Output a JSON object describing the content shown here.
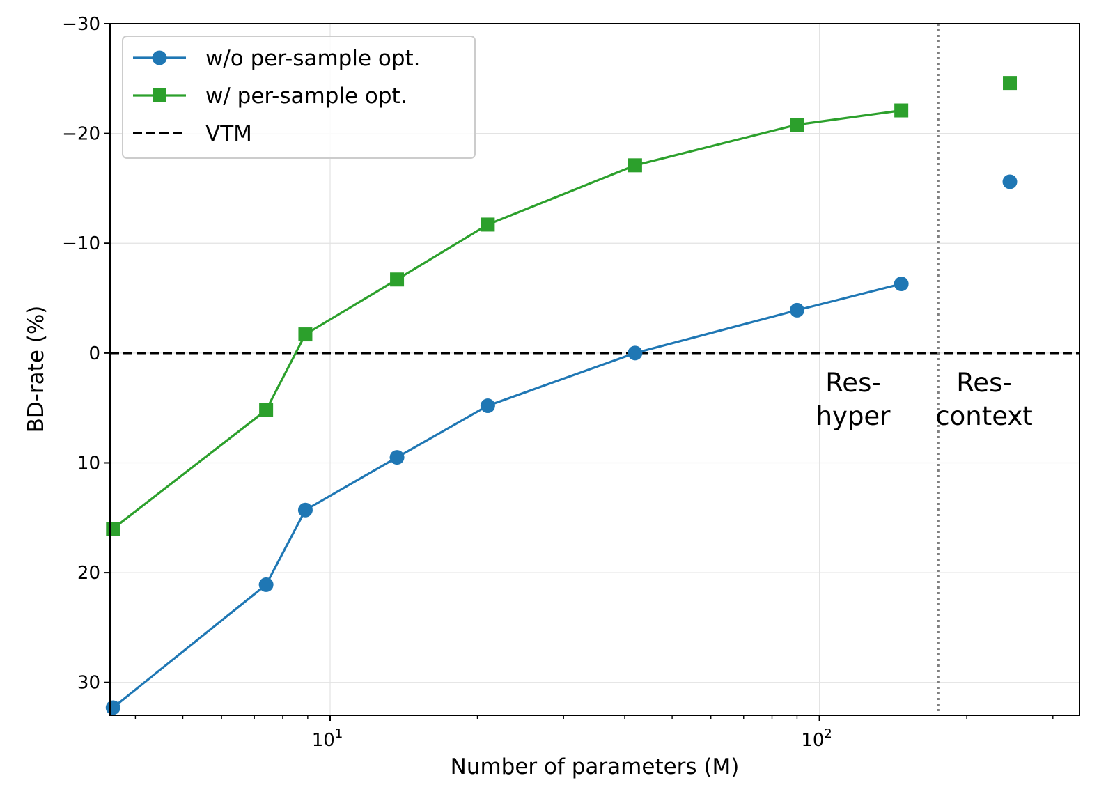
{
  "chart_data": {
    "type": "line",
    "title": "",
    "xlabel": "Number of parameters (M)",
    "ylabel": "BD-rate (%)",
    "xscale": "log",
    "xlim": [
      3.55,
      340
    ],
    "ylim": [
      33,
      -30
    ],
    "y_inverted": true,
    "grid": true,
    "legend_position": "top-left",
    "x_ticks": [
      {
        "value": 10,
        "base": "10",
        "exp": "1"
      },
      {
        "value": 100,
        "base": "10",
        "exp": "2"
      }
    ],
    "y_ticks": [
      {
        "value": -30,
        "label": "−30"
      },
      {
        "value": -20,
        "label": "−20"
      },
      {
        "value": -10,
        "label": "−10"
      },
      {
        "value": 0,
        "label": "0"
      },
      {
        "value": 10,
        "label": "10"
      },
      {
        "value": 20,
        "label": "20"
      },
      {
        "value": 30,
        "label": "30"
      }
    ],
    "series": [
      {
        "name": "w/o per-sample opt.",
        "color": "#1f77b4",
        "marker": "circle",
        "x": [
          3.6,
          7.4,
          8.9,
          13.7,
          21.0,
          42.0,
          90.0,
          147.0
        ],
        "values": [
          32.3,
          21.1,
          14.3,
          9.5,
          4.8,
          0.0,
          -3.9,
          -6.3
        ]
      },
      {
        "name": "w/ per-sample opt.",
        "color": "#2ca02c",
        "marker": "square",
        "x": [
          3.6,
          7.4,
          8.9,
          13.7,
          21.0,
          42.0,
          90.0,
          147.0
        ],
        "values": [
          16.0,
          5.2,
          -1.7,
          -6.7,
          -11.7,
          -17.1,
          -20.8,
          -22.1
        ]
      }
    ],
    "isolated_points": [
      {
        "series": "w/ per-sample opt.",
        "color": "#2ca02c",
        "marker": "square",
        "x": 245.0,
        "value": -24.6
      },
      {
        "series": "w/o per-sample opt.",
        "color": "#1f77b4",
        "marker": "circle",
        "x": 245.0,
        "value": -15.6
      }
    ],
    "reference_line": {
      "name": "VTM",
      "value": 0,
      "color": "#000000",
      "style": "dashed"
    },
    "divider_line": {
      "x": 175,
      "color": "#808080",
      "style": "dotted"
    },
    "region_labels": [
      {
        "line1": "Res-",
        "line2": "hyper",
        "x": 122,
        "side": "left"
      },
      {
        "line1": "Res-",
        "line2": "context",
        "x": 245,
        "side": "right"
      }
    ],
    "legend": [
      {
        "label": "w/o per-sample opt.",
        "color": "#1f77b4",
        "marker": "circle",
        "style": "solid"
      },
      {
        "label": "w/ per-sample opt.",
        "color": "#2ca02c",
        "marker": "square",
        "style": "solid"
      },
      {
        "label": "VTM",
        "color": "#000000",
        "marker": "none",
        "style": "dashed"
      }
    ]
  }
}
